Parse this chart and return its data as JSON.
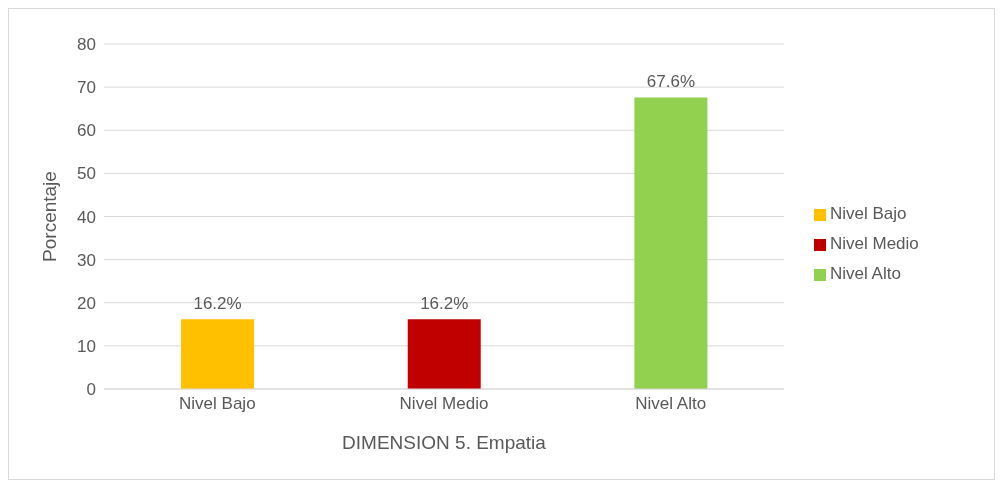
{
  "chart_data": {
    "type": "bar",
    "xlabel": "DIMENSION 5. Empatia",
    "ylabel": "Porcentaje",
    "categories": [
      "Nivel Bajo",
      "Nivel Medio",
      "Nivel Alto"
    ],
    "series": [
      {
        "name": "Nivel Bajo",
        "color": "#ffc000",
        "values": [
          16.2,
          null,
          null
        ],
        "value_labels": [
          "16.2%",
          null,
          null
        ]
      },
      {
        "name": "Nivel Medio",
        "color": "#c00000",
        "values": [
          null,
          16.2,
          null
        ],
        "value_labels": [
          null,
          "16.2%",
          null
        ]
      },
      {
        "name": "Nivel Alto",
        "color": "#92d050",
        "values": [
          null,
          null,
          67.6
        ],
        "value_labels": [
          null,
          null,
          "67.6%"
        ]
      }
    ],
    "stacked": true,
    "ylim": [
      0,
      80
    ],
    "yticks": [
      0,
      10,
      20,
      30,
      40,
      50,
      60,
      70,
      80
    ],
    "grid": "y",
    "legend": "right"
  }
}
